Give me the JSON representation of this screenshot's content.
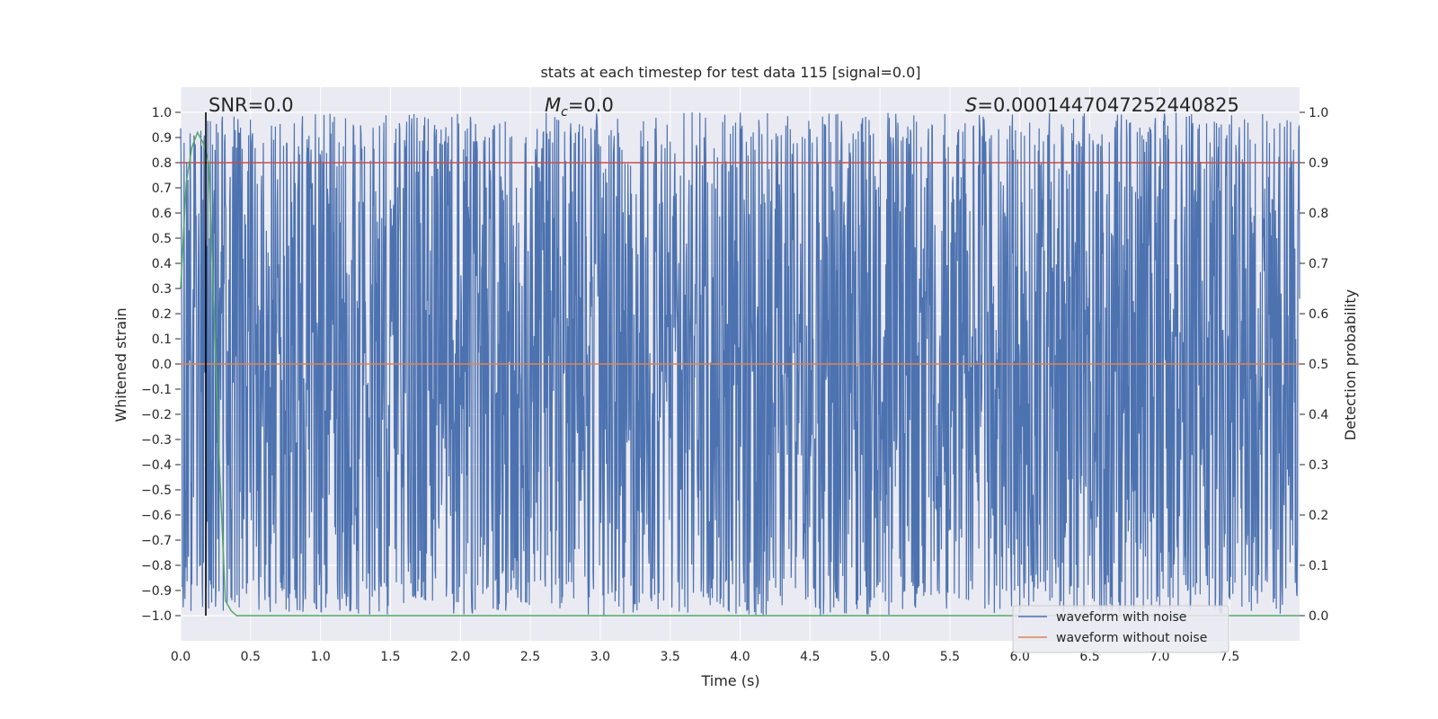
{
  "chart_data": {
    "type": "line",
    "title": "stats at each timestep for test data 115 [signal=0.0]",
    "xlabel": "Time (s)",
    "ylabel_left": "Whitened strain",
    "ylabel_right": "Detection probability",
    "xlim": [
      0.0,
      8.0
    ],
    "ylim_left": [
      -1.1,
      1.1
    ],
    "ylim_right": [
      -0.05,
      1.05
    ],
    "x_ticks": [
      "0.0",
      "0.5",
      "1.0",
      "1.5",
      "2.0",
      "2.5",
      "3.0",
      "3.5",
      "4.0",
      "4.5",
      "5.0",
      "5.5",
      "6.0",
      "6.5",
      "7.0",
      "7.5"
    ],
    "y_ticks_left": [
      "1.0",
      "0.9",
      "0.8",
      "0.7",
      "0.6",
      "0.5",
      "0.4",
      "0.3",
      "0.2",
      "0.1",
      "0.0",
      "−0.1",
      "−0.2",
      "−0.3",
      "−0.4",
      "−0.5",
      "−0.6",
      "−0.7",
      "−0.8",
      "−0.9",
      "−1.0"
    ],
    "y_ticks_right": [
      "1.0",
      "0.9",
      "0.8",
      "0.7",
      "0.6",
      "0.5",
      "0.4",
      "0.3",
      "0.2",
      "0.1",
      "0.0"
    ],
    "grid": true,
    "annotations": {
      "snr": "SNR=0.0",
      "mc_symbol": "M",
      "mc_sub": "c",
      "mc_value": "=0.0",
      "s_symbol": "S",
      "s_value": "=0.0001447047252440825"
    },
    "vertical_marker_x": 0.18,
    "series": [
      {
        "name": "waveform with noise",
        "color": "#4c72b0",
        "axis": "left",
        "note": "dense whitened noise normalized to [-1, 1]",
        "t_range": [
          0.0,
          8.0
        ]
      },
      {
        "name": "waveform without noise",
        "color": "#dd8452",
        "axis": "left",
        "x": [
          0.0,
          8.0
        ],
        "y": [
          0.0,
          0.0
        ]
      },
      {
        "color": "#55a868",
        "axis": "right",
        "x": [
          0.0,
          0.04,
          0.08,
          0.12,
          0.16,
          0.2,
          0.24,
          0.28,
          0.32,
          0.36,
          0.4,
          8.0
        ],
        "y": [
          0.65,
          0.86,
          0.93,
          0.96,
          0.94,
          0.9,
          0.6,
          0.28,
          0.03,
          0.01,
          0.0,
          0.0
        ]
      },
      {
        "color": "#c44e52",
        "axis": "right",
        "x": [
          0.0,
          8.0
        ],
        "y": [
          0.9,
          0.9
        ]
      }
    ],
    "legend": {
      "placement": "lower-right",
      "entries": [
        {
          "label": "waveform with noise",
          "color": "#4c72b0"
        },
        {
          "label": "waveform without noise",
          "color": "#dd8452"
        }
      ]
    }
  }
}
